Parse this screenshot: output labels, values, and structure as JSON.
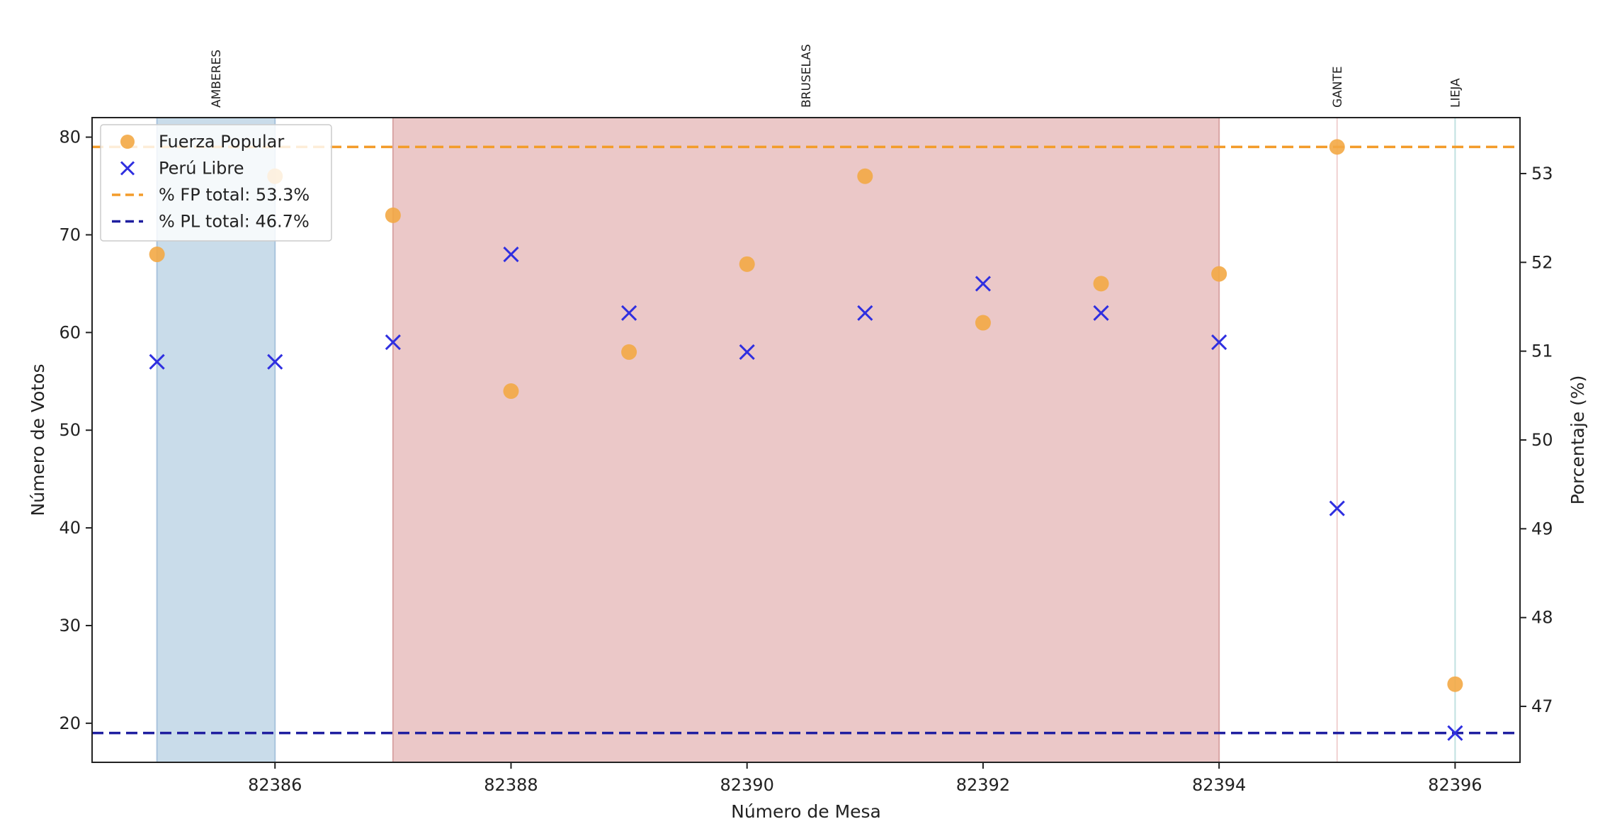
{
  "chart_data": {
    "type": "scatter",
    "xlabel": "Número de Mesa",
    "ylabel": "Número de Votos",
    "ylabel_right": "Porcentaje (%)",
    "xlim": [
      82384.45,
      82396.55
    ],
    "ylim": [
      16,
      82
    ],
    "ylim_right": [
      46.37,
      53.63
    ],
    "x_ticks": [
      82386,
      82388,
      82390,
      82392,
      82394,
      82396
    ],
    "y_ticks": [
      20,
      30,
      40,
      50,
      60,
      70,
      80
    ],
    "y_ticks_right": [
      47,
      48,
      49,
      50,
      51,
      52,
      53
    ],
    "regions": [
      {
        "label": "AMBERES",
        "x_start": 82385,
        "x_end": 82386,
        "color": "#c9dcea",
        "edge": "#a9c3dd"
      },
      {
        "label": "BRUSELAS",
        "x_start": 82387,
        "x_end": 82394,
        "color": "#ebc8c8",
        "edge": "#d8a5a5"
      },
      {
        "label": "GANTE",
        "x_start": 82395,
        "x_end": 82395,
        "color": "#f6dede",
        "edge": "#f0d0d0"
      },
      {
        "label": "LIEJA",
        "x_start": 82396,
        "x_end": 82396,
        "color": "#d8ecec",
        "edge": "#c0e0e0"
      }
    ],
    "series": [
      {
        "name": "Fuerza Popular",
        "marker": "circle",
        "color": "#f3a945",
        "x": [
          82385,
          82386,
          82387,
          82388,
          82389,
          82390,
          82391,
          82392,
          82393,
          82394,
          82395,
          82396
        ],
        "y": [
          68,
          76,
          72,
          54,
          58,
          67,
          76,
          61,
          65,
          66,
          79,
          24
        ]
      },
      {
        "name": "Perú Libre",
        "marker": "x",
        "color": "#2f2fe0",
        "x": [
          82385,
          82386,
          82387,
          82388,
          82389,
          82390,
          82391,
          82392,
          82393,
          82394,
          82395,
          82396
        ],
        "y": [
          57,
          57,
          59,
          68,
          62,
          58,
          62,
          65,
          62,
          59,
          42,
          19
        ]
      }
    ],
    "hlines": [
      {
        "name": "% FP total: 53.3%",
        "value_percent": 53.3,
        "color": "#f39c2a",
        "style": "dashed"
      },
      {
        "name": "% PL total: 46.7%",
        "value_percent": 46.7,
        "color": "#1f1fa0",
        "style": "dashed"
      }
    ],
    "legend_position": "top-left",
    "grid": false
  }
}
